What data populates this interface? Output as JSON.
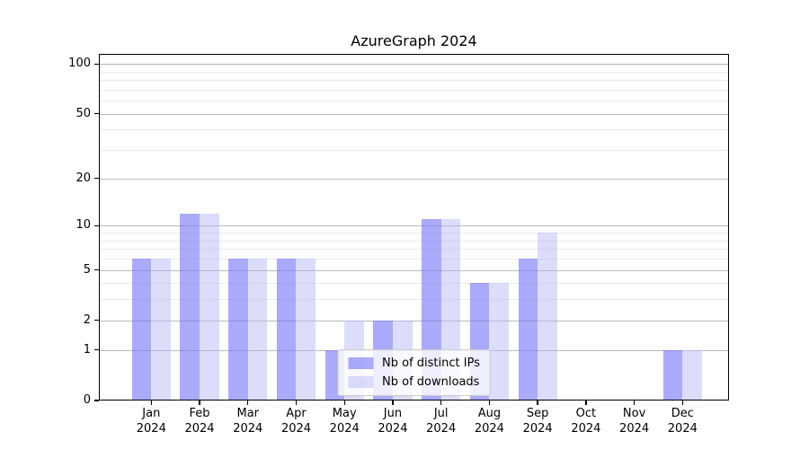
{
  "figure": {
    "title": "AzureGraph 2024"
  },
  "chart_data": {
    "type": "bar",
    "title": "AzureGraph 2024",
    "categories": [
      "Jan 2024",
      "Feb 2024",
      "Mar 2024",
      "Apr 2024",
      "May 2024",
      "Jun 2024",
      "Jul 2024",
      "Aug 2024",
      "Sep 2024",
      "Oct 2024",
      "Nov 2024",
      "Dec 2024"
    ],
    "series": [
      {
        "name": "Nb of distinct IPs",
        "values": [
          6,
          12,
          6,
          6,
          1,
          2,
          11,
          4,
          6,
          0,
          0,
          1
        ],
        "color_hex": "#aaaafa",
        "fill": "rgba(116,116,248,0.61)"
      },
      {
        "name": "Nb of downloads",
        "values": [
          6,
          12,
          6,
          6,
          2,
          2,
          11,
          4,
          9,
          0,
          0,
          1
        ],
        "color_hex": "#dcdcfb",
        "fill": "rgba(180,180,246,0.47)"
      }
    ],
    "xlabel": "",
    "ylabel": "",
    "yaxis": {
      "scale": "log1p",
      "ticks": [
        0,
        1,
        2,
        5,
        10,
        20,
        50,
        100
      ],
      "minor_ticks": [
        3,
        4,
        6,
        7,
        8,
        9,
        30,
        40,
        60,
        70,
        80,
        90
      ],
      "display_max": 115
    },
    "grid": true,
    "legend_position": "lower center",
    "colors": {
      "major_grid": "#b9b9b9",
      "minor_grid": "#eaeaea",
      "axis": "#000000",
      "background": "#ffffff"
    }
  }
}
